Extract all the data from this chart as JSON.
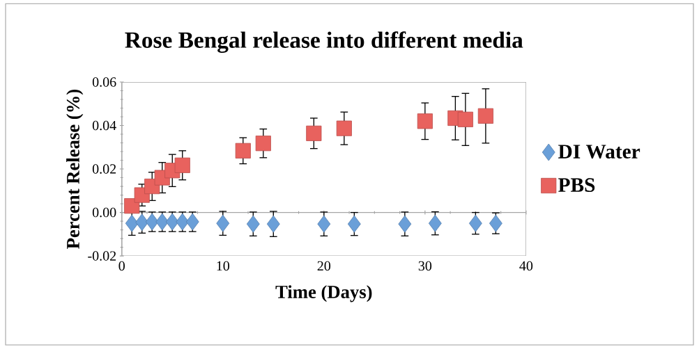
{
  "chart_data": {
    "type": "scatter",
    "title": "Rose Bengal release into different media",
    "xlabel": "Time (Days)",
    "ylabel": "Percent Release (%)",
    "xlim": [
      0,
      40
    ],
    "xticks": [
      0,
      10,
      20,
      30,
      40
    ],
    "ylim": [
      -0.02,
      0.06
    ],
    "yticks": [
      {
        "value": -0.02,
        "label": "-0.02"
      },
      {
        "value": 0,
        "label": "0.00"
      },
      {
        "value": 0.02,
        "label": "0.02"
      },
      {
        "value": 0.04,
        "label": "0.04"
      },
      {
        "value": 0.06,
        "label": "0.06"
      }
    ],
    "legend": "right",
    "series": [
      {
        "name": "DI Water",
        "color": "#6a9fd8",
        "marker": "diamond",
        "x": [
          1,
          2,
          3,
          4,
          5,
          6,
          7,
          10,
          13,
          15,
          20,
          23,
          28,
          31,
          35,
          37
        ],
        "values": [
          -0.005,
          -0.0045,
          -0.0043,
          -0.0043,
          -0.0043,
          -0.0043,
          -0.0043,
          -0.005,
          -0.0053,
          -0.0053,
          -0.0053,
          -0.0053,
          -0.0053,
          -0.005,
          -0.005,
          -0.005
        ],
        "errors": [
          0.0055,
          0.005,
          0.0045,
          0.0045,
          0.0045,
          0.0045,
          0.0045,
          0.0055,
          0.0055,
          0.0058,
          0.0055,
          0.0053,
          0.0055,
          0.0053,
          0.005,
          0.0048
        ]
      },
      {
        "name": "PBS",
        "color": "#e8625e",
        "marker": "square",
        "x": [
          1,
          2,
          3,
          4,
          5,
          6,
          12,
          14,
          19,
          22,
          30,
          33,
          34,
          36
        ],
        "values": [
          0.003,
          0.008,
          0.012,
          0.016,
          0.0193,
          0.0217,
          0.0284,
          0.0318,
          0.0364,
          0.0387,
          0.042,
          0.0434,
          0.0428,
          0.0444
        ],
        "errors": [
          null,
          0.005,
          0.0065,
          0.007,
          0.0074,
          0.0067,
          0.006,
          0.0066,
          0.007,
          0.0075,
          0.0084,
          0.01,
          0.012,
          0.0125
        ]
      }
    ]
  }
}
